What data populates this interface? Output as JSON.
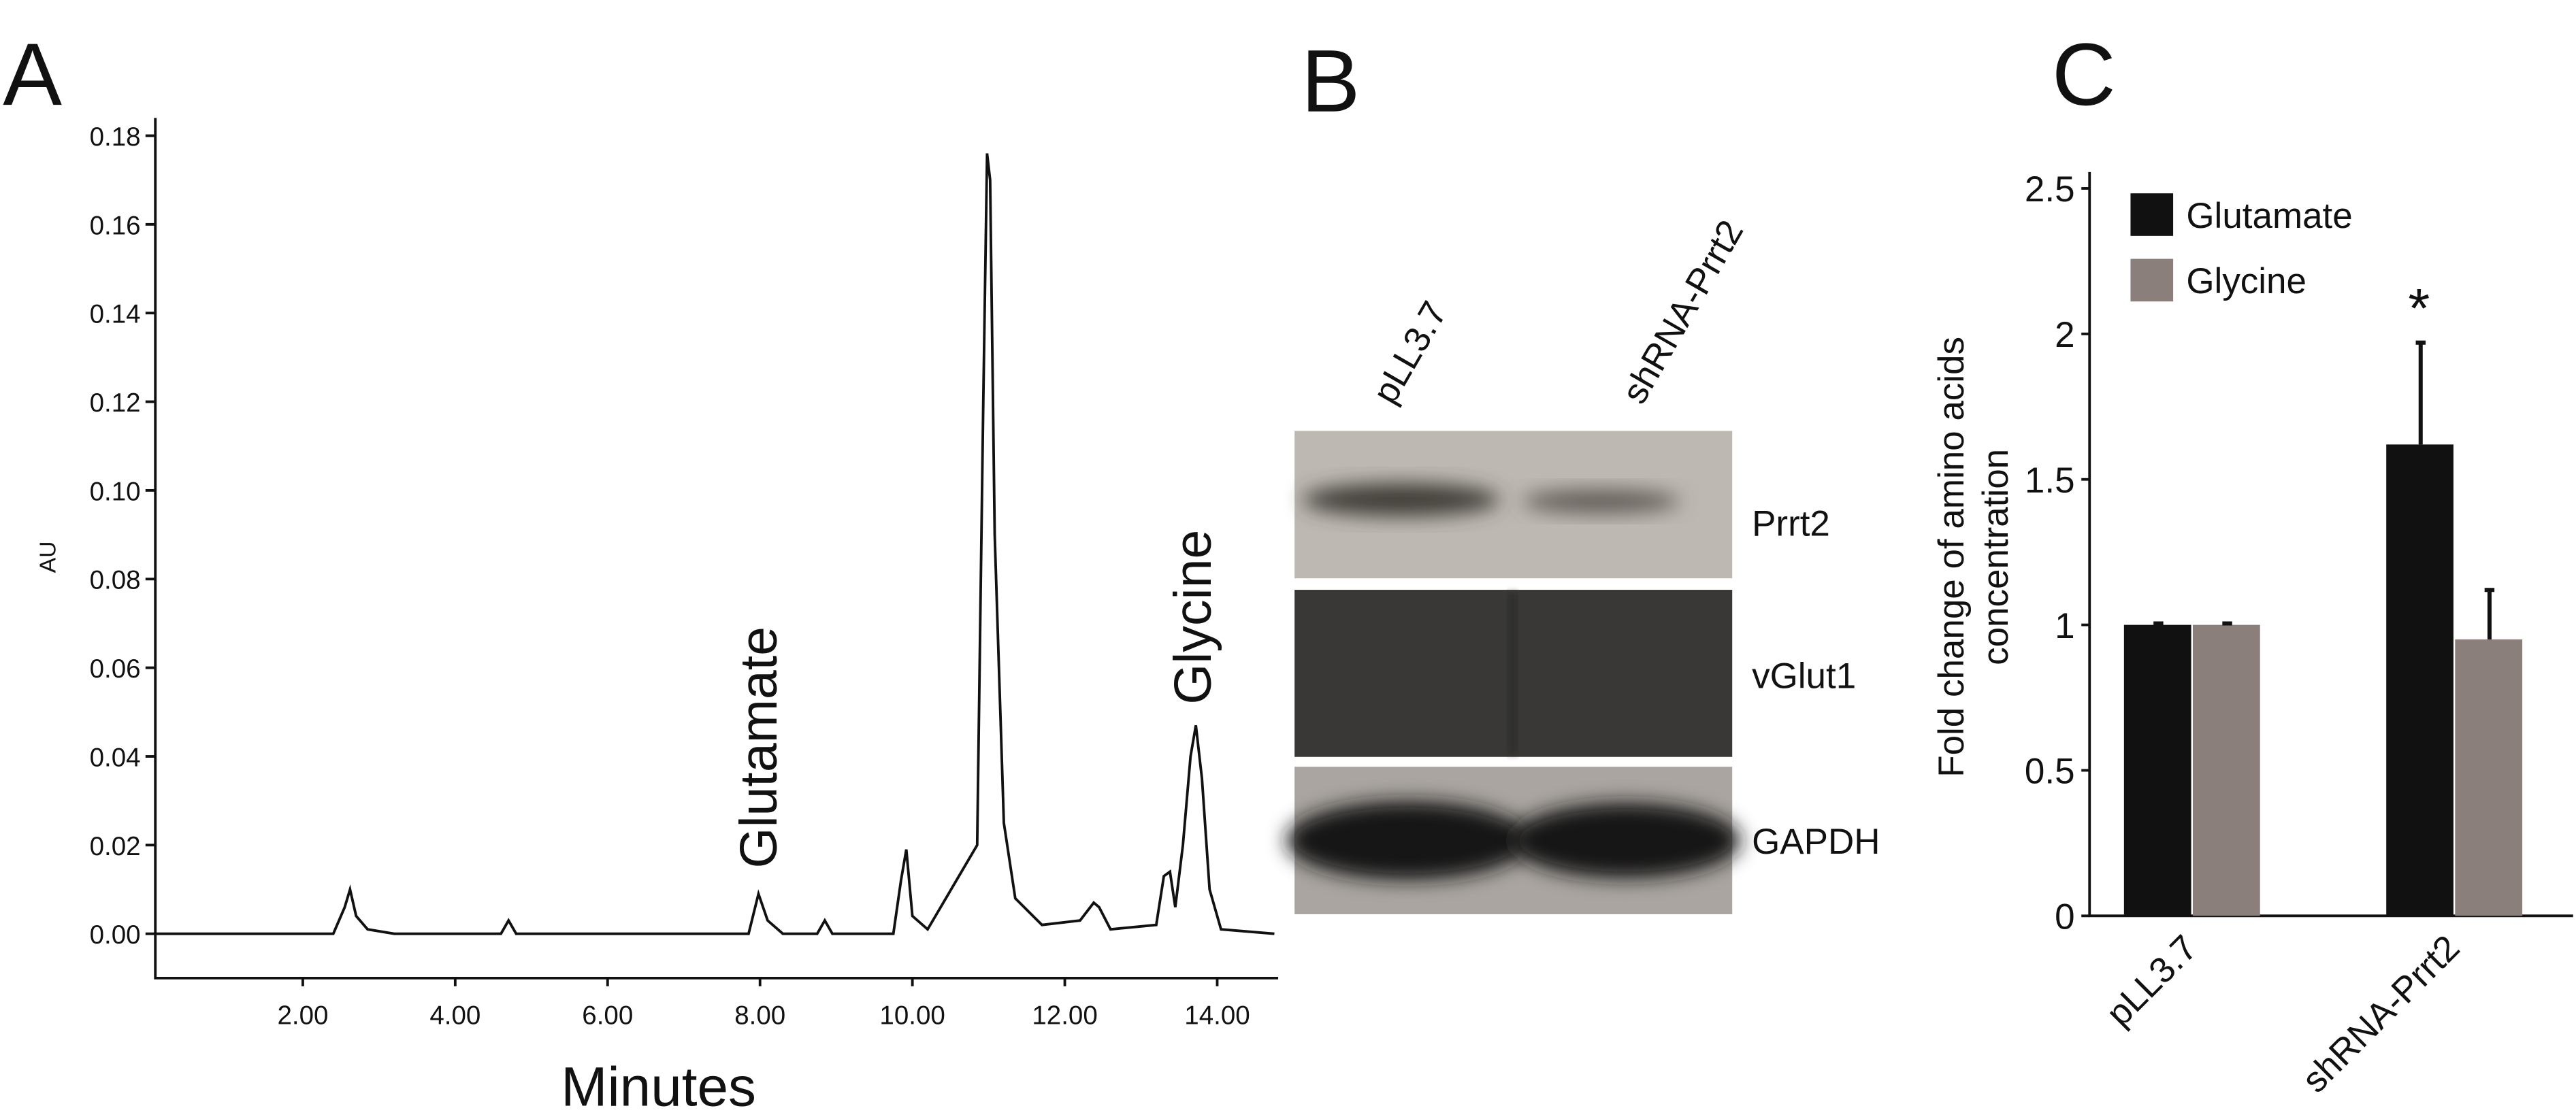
{
  "chart_data": [
    {
      "type": "line",
      "panel": "A",
      "xlabel": "Minutes",
      "ylabel": "AU",
      "x": [
        0.06,
        2.4,
        2.55,
        2.62,
        2.7,
        2.85,
        3.2,
        4.6,
        4.7,
        4.8,
        7.85,
        7.98,
        8.1,
        8.3,
        8.75,
        8.85,
        8.95,
        9.75,
        9.85,
        9.92,
        10.0,
        10.2,
        10.85,
        10.93,
        10.98,
        11.02,
        11.08,
        11.2,
        11.35,
        11.7,
        12.2,
        12.38,
        12.45,
        12.6,
        13.2,
        13.3,
        13.38,
        13.45,
        13.55,
        13.65,
        13.72,
        13.8,
        13.9,
        14.05,
        14.75
      ],
      "values": [
        0,
        0,
        0.006,
        0.01,
        0.004,
        0.001,
        0,
        0,
        0.003,
        0,
        0,
        0.009,
        0.003,
        0,
        0,
        0.003,
        0,
        0,
        0.012,
        0.019,
        0.004,
        0.001,
        0.02,
        0.12,
        0.176,
        0.17,
        0.09,
        0.025,
        0.008,
        0.002,
        0.003,
        0.007,
        0.006,
        0.001,
        0.002,
        0.013,
        0.014,
        0.006,
        0.02,
        0.04,
        0.047,
        0.035,
        0.01,
        0.001,
        0
      ],
      "color": "#111111",
      "xlim": [
        0,
        14.8
      ],
      "xticks": [
        {
          "value": 2,
          "label": "2.00"
        },
        {
          "value": 4,
          "label": "4.00"
        },
        {
          "value": 6,
          "label": "6.00"
        },
        {
          "value": 8,
          "label": "8.00"
        },
        {
          "value": 10,
          "label": "10.00"
        },
        {
          "value": 12,
          "label": "12.00"
        },
        {
          "value": 14,
          "label": "14.00"
        }
      ],
      "ylim": [
        -0.01,
        0.184
      ],
      "yticks": [
        {
          "value": 0,
          "label": "0.00"
        },
        {
          "value": 0.02,
          "label": "0.02"
        },
        {
          "value": 0.04,
          "label": "0.04"
        },
        {
          "value": 0.06,
          "label": "0.06"
        },
        {
          "value": 0.08,
          "label": "0.08"
        },
        {
          "value": 0.1,
          "label": "0.10"
        },
        {
          "value": 0.12,
          "label": "0.12"
        },
        {
          "value": 0.14,
          "label": "0.14"
        },
        {
          "value": 0.16,
          "label": "0.16"
        },
        {
          "value": 0.18,
          "label": "0.18"
        }
      ],
      "annotations": [
        {
          "text": "Glutamate",
          "x": 8.0
        },
        {
          "text": "Glycine",
          "x": 13.7
        }
      ]
    },
    {
      "type": "blot",
      "panel": "B",
      "lanes": [
        "pLL3.7",
        "shRNA-Prrt2"
      ],
      "bands": [
        "Prrt2",
        "vGlut1",
        "GAPDH"
      ]
    },
    {
      "type": "bar",
      "panel": "C",
      "ylabel": [
        "Fold change of amino acids",
        "concentration"
      ],
      "categories": [
        "pLL3.7",
        "shRNA-Prrt2"
      ],
      "series": [
        {
          "name": "Glutamate",
          "color": "#111111",
          "values": [
            1,
            1.62
          ],
          "errors": [
            0.005,
            0.35
          ]
        },
        {
          "name": "Glycine",
          "color": "#8a7f7a",
          "values": [
            1,
            0.95
          ],
          "errors": [
            0.005,
            0.17
          ]
        }
      ],
      "ylim": [
        0,
        2.5
      ],
      "yticks": [
        0,
        0.5,
        1,
        1.5,
        2,
        2.5
      ],
      "annotation": "*"
    }
  ]
}
